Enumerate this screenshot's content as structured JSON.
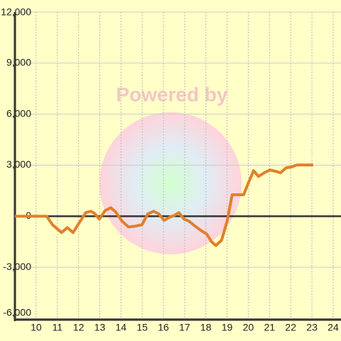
{
  "chart_data": {
    "type": "line",
    "watermark": "Powered by",
    "x": [
      9,
      10.5,
      10.77,
      11.2,
      11.47,
      11.74,
      12.08,
      12.34,
      12.58,
      12.75,
      12.98,
      13.25,
      13.52,
      13.75,
      14.05,
      14.35,
      14.65,
      14.99,
      15.26,
      15.53,
      15.79,
      16.03,
      16.26,
      16.5,
      16.73,
      16.97,
      17.2,
      17.5,
      17.77,
      18.04,
      18.27,
      18.47,
      18.74,
      19.01,
      19.24,
      19.78,
      20.01,
      20.25,
      20.48,
      20.75,
      21.02,
      21.29,
      21.52,
      21.79,
      22.02,
      22.29,
      23.06
    ],
    "series": [
      {
        "color": "#e0802a",
        "values": [
          0,
          0,
          -500,
          -960,
          -670,
          -960,
          -290,
          210,
          290,
          170,
          -170,
          330,
          500,
          250,
          -290,
          -630,
          -590,
          -500,
          130,
          290,
          130,
          -250,
          -80,
          40,
          210,
          -170,
          -290,
          -590,
          -840,
          -1050,
          -1500,
          -1720,
          -1420,
          -250,
          1260,
          1260,
          1970,
          2680,
          2340,
          2550,
          2720,
          2640,
          2550,
          2850,
          2890,
          3010,
          3010
        ]
      }
    ],
    "xlim": [
      9,
      24.37
    ],
    "xticks": [
      10,
      11,
      12,
      13,
      14,
      15,
      16,
      17,
      18,
      19,
      20,
      21,
      22,
      23,
      24
    ],
    "ylim": [
      -6000,
      12000
    ],
    "yticks": [
      {
        "value": -6000,
        "label": "-6,000"
      },
      {
        "value": -3000,
        "label": "-3,000"
      },
      0,
      {
        "value": 3000,
        "label": "3,000"
      },
      {
        "value": 6000,
        "label": "6,000"
      },
      {
        "value": 9000,
        "label": "9,000"
      },
      {
        "value": 12000,
        "label": "12,000"
      }
    ],
    "grid": true
  }
}
